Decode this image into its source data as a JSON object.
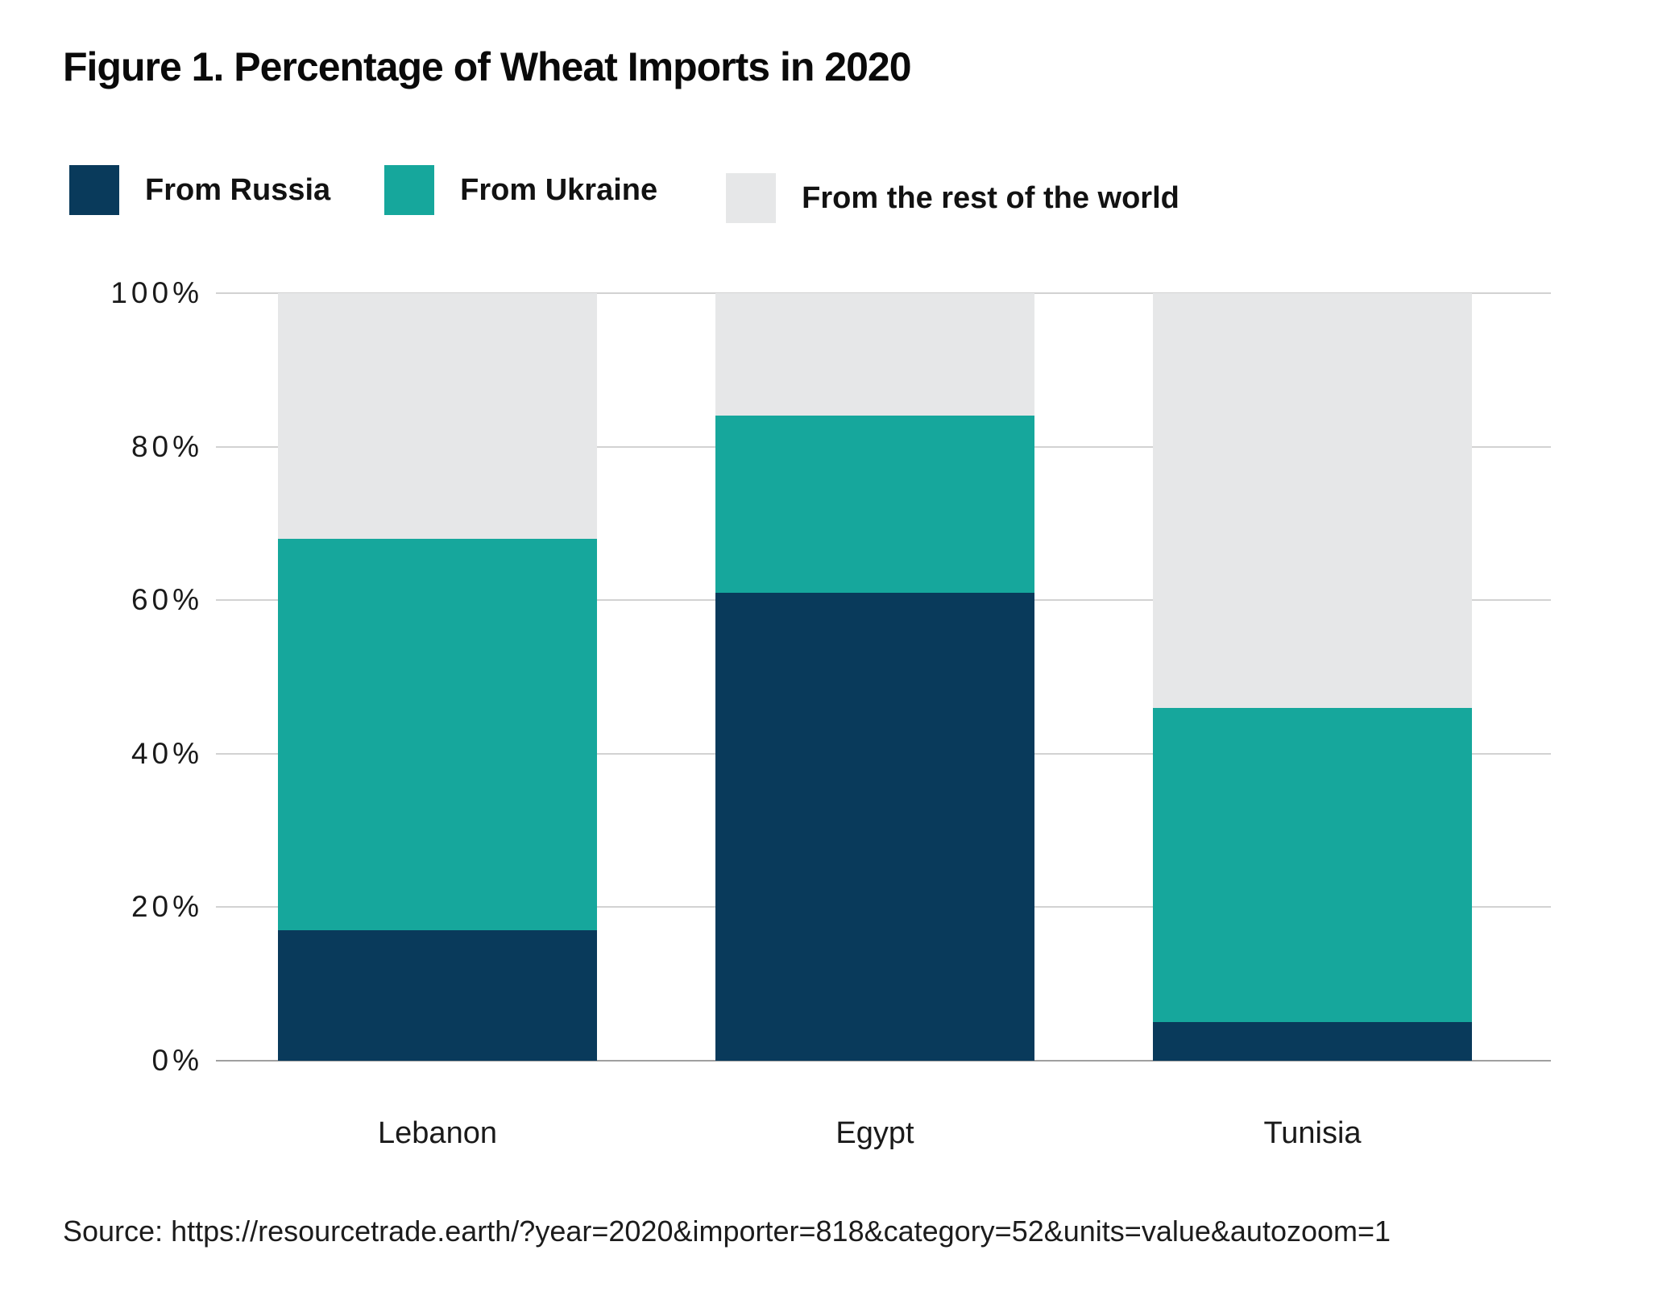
{
  "title": "Figure 1. Percentage of Wheat Imports in 2020",
  "legend": {
    "items": [
      {
        "label": "From Russia",
        "color": "#093A5B"
      },
      {
        "label": "From Ukraine",
        "color": "#16A79C"
      },
      {
        "label": "From the rest of the world",
        "color": "#E6E7E8"
      }
    ]
  },
  "source_line": "Source: https://resourcetrade.earth/?year=2020&importer=818&category=52&units=value&autozoom=1",
  "chart_data": {
    "type": "bar",
    "stacked": true,
    "title": "Figure 1. Percentage of Wheat Imports in 2020",
    "categories": [
      "Lebanon",
      "Egypt",
      "Tunisia"
    ],
    "series": [
      {
        "name": "From Russia",
        "color": "#093A5B",
        "values": [
          17,
          61,
          5
        ]
      },
      {
        "name": "From Ukraine",
        "color": "#16A79C",
        "values": [
          51,
          23,
          41
        ]
      },
      {
        "name": "From the rest of the world",
        "color": "#E6E7E8",
        "values": [
          32,
          16,
          54
        ]
      }
    ],
    "ylim": [
      0,
      100
    ],
    "yticks": [
      {
        "value": 100,
        "label": "100%"
      },
      {
        "value": 80,
        "label": "80%"
      },
      {
        "value": 60,
        "label": "60%"
      },
      {
        "value": 40,
        "label": "40%"
      },
      {
        "value": 20,
        "label": "20%"
      },
      {
        "value": 0,
        "label": "0%"
      }
    ],
    "grid": true,
    "legend_position": "top",
    "colors": {
      "gridline": "#d2d2d2",
      "baseline": "#9f9f9f",
      "text": "#1a1a1a"
    }
  }
}
